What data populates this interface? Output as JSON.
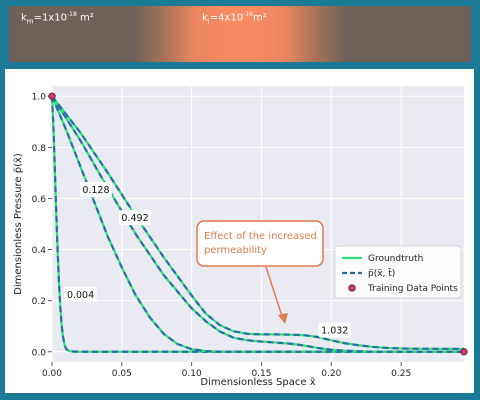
{
  "banner": {
    "km": {
      "sym": "k",
      "sub": "m",
      "text": "=1x10",
      "exp": "-18",
      "unit": " m²"
    },
    "ki": {
      "sym": "k",
      "sub": "i",
      "text": "=4x10",
      "exp": "-16",
      "unit": "m²"
    },
    "colors": {
      "matrix": "#6f6159",
      "inclusion": "#f78a62"
    }
  },
  "chart_data": {
    "type": "line",
    "xlabel": "Dimensionless Space x̃",
    "ylabel": "Dimensionless Pressure p̃(x̃)",
    "xlim": [
      0,
      0.295
    ],
    "ylim": [
      -0.04,
      1.04
    ],
    "xticks": [
      0,
      0.05,
      0.1,
      0.15,
      0.2,
      0.25
    ],
    "xtick_labels": [
      "0.00",
      "0.05",
      "0.10",
      "0.15",
      "0.20",
      "0.25"
    ],
    "yticks": [
      0,
      0.2,
      0.4,
      0.6,
      0.8,
      1.0
    ],
    "ytick_labels": [
      "0.0",
      "0.2",
      "0.4",
      "0.6",
      "0.8",
      "1.0"
    ],
    "grid": true,
    "legend": {
      "placement": "center-right",
      "entries": [
        {
          "label": "Groundtruth",
          "style": "solid",
          "color": "#2ee07a"
        },
        {
          "label": "p̃(x̃, t̃)",
          "style": "dashed",
          "color": "#2a6fa3"
        },
        {
          "label": "Training Data Points",
          "style": "marker",
          "color": "#d6336c"
        }
      ]
    },
    "series": [
      {
        "label": "0.004",
        "x": [
          0,
          0.001,
          0.002,
          0.003,
          0.004,
          0.005,
          0.006,
          0.007,
          0.008,
          0.009,
          0.01,
          0.012,
          0.015,
          0.02,
          0.295
        ],
        "y": [
          1.0,
          0.88,
          0.72,
          0.55,
          0.4,
          0.27,
          0.17,
          0.1,
          0.055,
          0.028,
          0.012,
          0.004,
          0.001,
          0.0,
          0.0
        ]
      },
      {
        "label": "0.128",
        "x": [
          0,
          0.01,
          0.02,
          0.03,
          0.04,
          0.05,
          0.06,
          0.07,
          0.08,
          0.09,
          0.1,
          0.11,
          0.12,
          0.295
        ],
        "y": [
          1.0,
          0.87,
          0.73,
          0.59,
          0.45,
          0.33,
          0.22,
          0.135,
          0.07,
          0.03,
          0.01,
          0.003,
          0.0,
          0.0
        ]
      },
      {
        "label": "0.492",
        "x": [
          0,
          0.02,
          0.04,
          0.06,
          0.08,
          0.1,
          0.11,
          0.12,
          0.13,
          0.14,
          0.15,
          0.16,
          0.17,
          0.18,
          0.19,
          0.2,
          0.21,
          0.22,
          0.23,
          0.295
        ],
        "y": [
          1.0,
          0.83,
          0.64,
          0.46,
          0.3,
          0.17,
          0.12,
          0.08,
          0.055,
          0.045,
          0.04,
          0.036,
          0.032,
          0.025,
          0.015,
          0.008,
          0.004,
          0.002,
          0.0,
          0.0
        ]
      },
      {
        "label": "1.032",
        "x": [
          0,
          0.02,
          0.04,
          0.06,
          0.08,
          0.1,
          0.11,
          0.12,
          0.13,
          0.14,
          0.15,
          0.16,
          0.17,
          0.18,
          0.19,
          0.2,
          0.21,
          0.22,
          0.23,
          0.24,
          0.25,
          0.26,
          0.295
        ],
        "y": [
          1.0,
          0.86,
          0.7,
          0.53,
          0.37,
          0.22,
          0.15,
          0.105,
          0.08,
          0.07,
          0.068,
          0.068,
          0.067,
          0.065,
          0.058,
          0.045,
          0.033,
          0.025,
          0.019,
          0.015,
          0.013,
          0.012,
          0.011
        ]
      }
    ],
    "time_label_positions": [
      {
        "label": "0.004",
        "x": 0.009,
        "y": 0.225
      },
      {
        "label": "0.128",
        "x": 0.02,
        "y": 0.635
      },
      {
        "label": "0.492",
        "x": 0.048,
        "y": 0.525
      },
      {
        "label": "1.032",
        "x": 0.191,
        "y": 0.085
      }
    ],
    "training_points": [
      {
        "x": 0,
        "y": 1.0
      },
      {
        "x": 0.295,
        "y": 0.0
      }
    ],
    "annotation": {
      "text_lines": [
        "Effect of the increased",
        "permeability"
      ],
      "target": {
        "x": 0.165,
        "y": 0.075
      },
      "color": "#e07b4d"
    }
  }
}
